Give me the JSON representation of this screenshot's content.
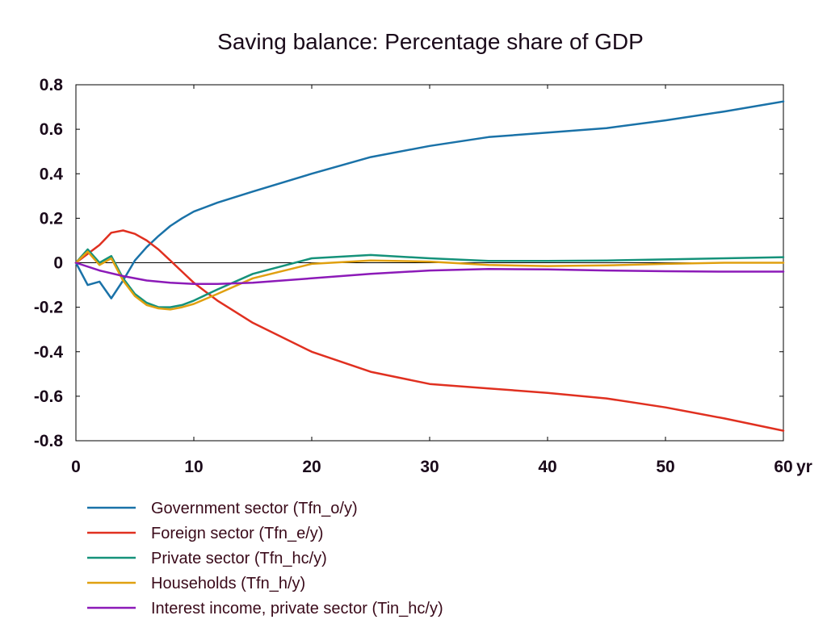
{
  "chart_data": {
    "type": "line",
    "title": "Saving balance: Percentage share of GDP",
    "xlabel": "",
    "ylabel": "",
    "x_unit_label": "yr",
    "xlim": [
      0,
      60
    ],
    "ylim": [
      -0.8,
      0.8
    ],
    "x_ticks": [
      0,
      10,
      20,
      30,
      40,
      50,
      60
    ],
    "x_tick_labels": [
      "0",
      "10",
      "20",
      "30",
      "40",
      "50",
      "60 yr"
    ],
    "y_ticks": [
      0.8,
      0.6,
      0.4,
      0.2,
      0,
      -0.2,
      -0.4,
      -0.6,
      -0.8
    ],
    "y_tick_labels": [
      "0.8",
      "0.6",
      "0.4",
      "0.2",
      "0",
      "-0.2",
      "-0.4",
      "-0.6",
      "-0.8"
    ],
    "grid": false,
    "legend_position": "bottom",
    "series": [
      {
        "name": "Government sector (Tfn_o/y)",
        "color": "#1a72a8",
        "points": [
          [
            0,
            0
          ],
          [
            1,
            -0.1
          ],
          [
            2,
            -0.085
          ],
          [
            3,
            -0.16
          ],
          [
            4,
            -0.08
          ],
          [
            5,
            0.01
          ],
          [
            6,
            0.07
          ],
          [
            7,
            0.12
          ],
          [
            8,
            0.165
          ],
          [
            9,
            0.2
          ],
          [
            10,
            0.23
          ],
          [
            12,
            0.27
          ],
          [
            15,
            0.32
          ],
          [
            20,
            0.4
          ],
          [
            25,
            0.475
          ],
          [
            30,
            0.525
          ],
          [
            35,
            0.565
          ],
          [
            40,
            0.585
          ],
          [
            45,
            0.605
          ],
          [
            50,
            0.64
          ],
          [
            55,
            0.68
          ],
          [
            60,
            0.725
          ]
        ]
      },
      {
        "name": "Foreign sector (Tfn_e/y)",
        "color": "#e03020",
        "points": [
          [
            0,
            0
          ],
          [
            1,
            0.04
          ],
          [
            2,
            0.08
          ],
          [
            3,
            0.135
          ],
          [
            4,
            0.145
          ],
          [
            5,
            0.13
          ],
          [
            6,
            0.1
          ],
          [
            7,
            0.06
          ],
          [
            8,
            0.01
          ],
          [
            9,
            -0.04
          ],
          [
            10,
            -0.09
          ],
          [
            12,
            -0.17
          ],
          [
            15,
            -0.27
          ],
          [
            20,
            -0.4
          ],
          [
            25,
            -0.49
          ],
          [
            30,
            -0.545
          ],
          [
            35,
            -0.565
          ],
          [
            40,
            -0.585
          ],
          [
            45,
            -0.61
          ],
          [
            50,
            -0.65
          ],
          [
            55,
            -0.7
          ],
          [
            60,
            -0.755
          ]
        ]
      },
      {
        "name": "Private sector (Tfn_hc/y)",
        "color": "#15927a",
        "points": [
          [
            0,
            0
          ],
          [
            1,
            0.06
          ],
          [
            2,
            0.0
          ],
          [
            3,
            0.03
          ],
          [
            4,
            -0.07
          ],
          [
            5,
            -0.14
          ],
          [
            6,
            -0.18
          ],
          [
            7,
            -0.2
          ],
          [
            8,
            -0.2
          ],
          [
            9,
            -0.19
          ],
          [
            10,
            -0.17
          ],
          [
            12,
            -0.12
          ],
          [
            15,
            -0.05
          ],
          [
            20,
            0.02
          ],
          [
            25,
            0.035
          ],
          [
            30,
            0.02
          ],
          [
            35,
            0.008
          ],
          [
            40,
            0.008
          ],
          [
            45,
            0.01
          ],
          [
            50,
            0.015
          ],
          [
            55,
            0.02
          ],
          [
            60,
            0.025
          ]
        ]
      },
      {
        "name": "Households (Tfn_h/y)",
        "color": "#e0a010",
        "points": [
          [
            0,
            0
          ],
          [
            1,
            0.05
          ],
          [
            2,
            -0.01
          ],
          [
            3,
            0.02
          ],
          [
            4,
            -0.08
          ],
          [
            5,
            -0.15
          ],
          [
            6,
            -0.19
          ],
          [
            7,
            -0.205
          ],
          [
            8,
            -0.21
          ],
          [
            9,
            -0.2
          ],
          [
            10,
            -0.185
          ],
          [
            12,
            -0.14
          ],
          [
            15,
            -0.07
          ],
          [
            20,
            -0.005
          ],
          [
            25,
            0.01
          ],
          [
            30,
            0.005
          ],
          [
            35,
            -0.01
          ],
          [
            40,
            -0.015
          ],
          [
            45,
            -0.012
          ],
          [
            50,
            -0.005
          ],
          [
            55,
            0.0
          ],
          [
            60,
            0.0
          ]
        ]
      },
      {
        "name": "Interest income, private sector (Tin_hc/y)",
        "color": "#8c1ab8",
        "points": [
          [
            0,
            0
          ],
          [
            2,
            -0.035
          ],
          [
            4,
            -0.06
          ],
          [
            6,
            -0.08
          ],
          [
            8,
            -0.09
          ],
          [
            10,
            -0.095
          ],
          [
            12,
            -0.095
          ],
          [
            15,
            -0.09
          ],
          [
            20,
            -0.07
          ],
          [
            25,
            -0.05
          ],
          [
            30,
            -0.035
          ],
          [
            35,
            -0.028
          ],
          [
            40,
            -0.03
          ],
          [
            45,
            -0.035
          ],
          [
            50,
            -0.038
          ],
          [
            55,
            -0.04
          ],
          [
            60,
            -0.04
          ]
        ]
      }
    ]
  }
}
